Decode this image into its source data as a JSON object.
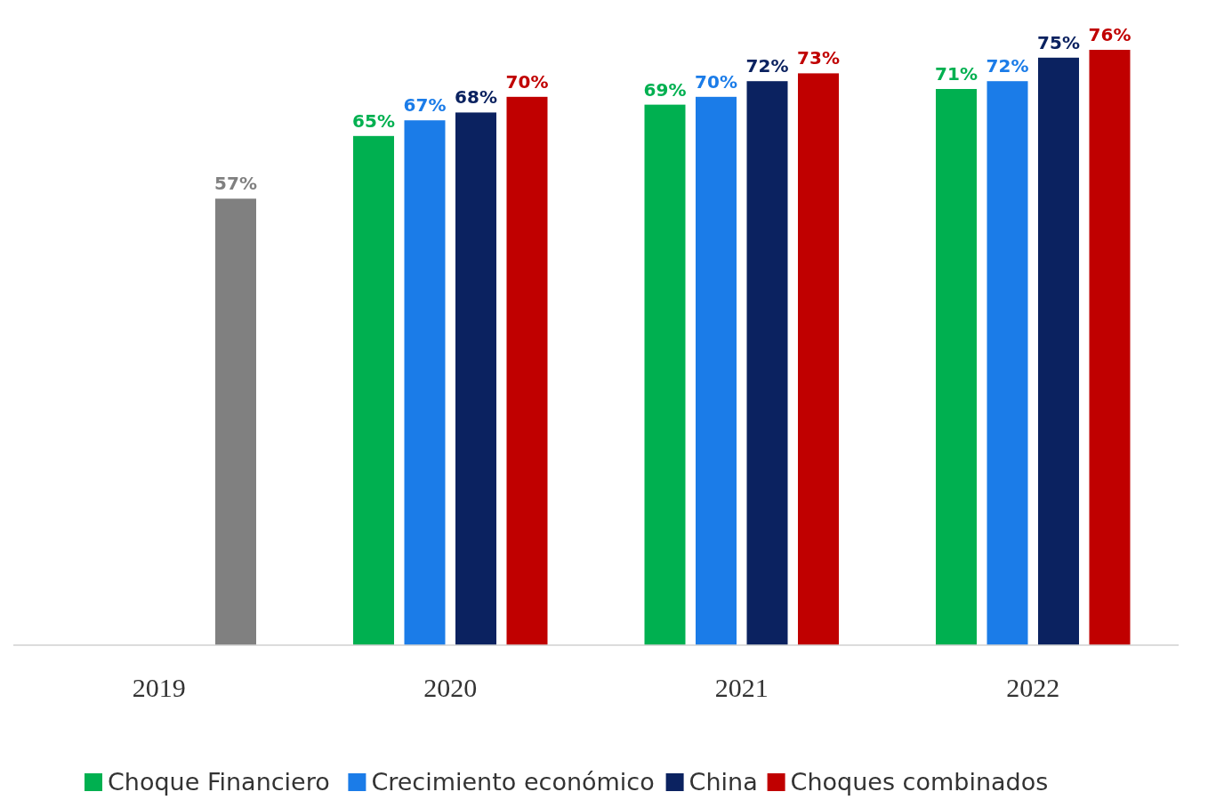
{
  "chart_data": {
    "type": "bar",
    "categories": [
      "2019",
      "2020",
      "2021",
      "2022"
    ],
    "series": [
      {
        "name": "Choque Financiero",
        "color": "#00b050",
        "values": [
          null,
          65,
          69,
          71
        ],
        "value_labels": [
          null,
          "65%",
          "69%",
          "71%"
        ]
      },
      {
        "name": "Crecimiento económico",
        "color": "#1b7ce8",
        "values": [
          null,
          67,
          70,
          72
        ],
        "value_labels": [
          null,
          "67%",
          "70%",
          "72%"
        ]
      },
      {
        "name": "China",
        "color": "#0b2260",
        "values": [
          null,
          68,
          72,
          75
        ],
        "value_labels": [
          null,
          "68%",
          "72%",
          "75%"
        ]
      },
      {
        "name": "Choques combinados",
        "color": "#c00000",
        "colors": [
          "#808080",
          "#c00000",
          "#c00000",
          "#c00000"
        ],
        "values": [
          57,
          70,
          73,
          76
        ],
        "value_labels": [
          "57%",
          "70%",
          "73%",
          "76%"
        ]
      }
    ],
    "legend": "bottom"
  }
}
